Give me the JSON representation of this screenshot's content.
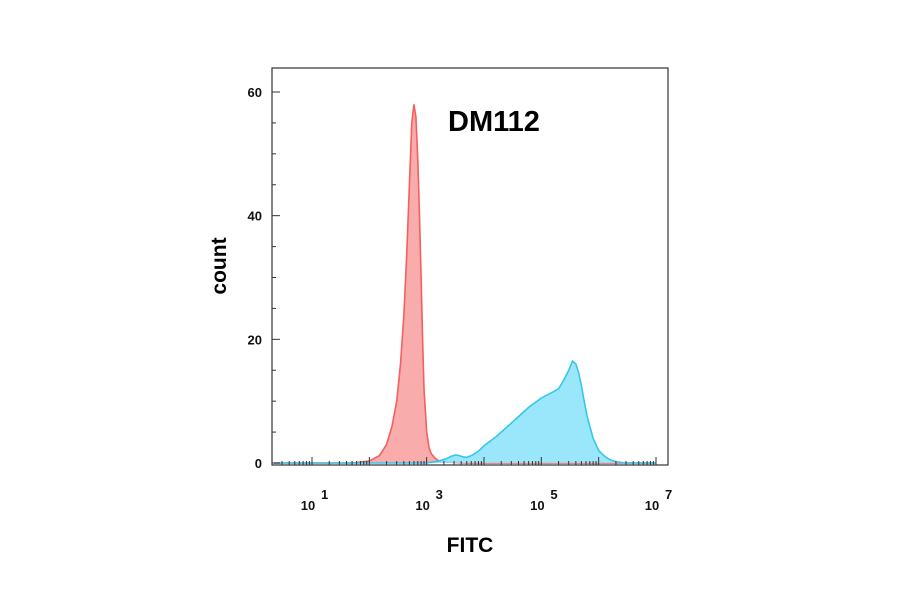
{
  "chart_data": {
    "type": "area",
    "title": "DM112",
    "xlabel": "FITC",
    "ylabel": "count",
    "x_scale": "log10",
    "xlim": [
      1,
      10000000
    ],
    "ylim": [
      0,
      62
    ],
    "x_ticks": [
      {
        "value": 10,
        "base": "10",
        "exp": "1"
      },
      {
        "value": 1000,
        "base": "10",
        "exp": "3"
      },
      {
        "value": 100000,
        "base": "10",
        "exp": "5"
      },
      {
        "value": 10000000,
        "base": "10",
        "exp": "7"
      }
    ],
    "y_ticks": [
      {
        "value": 0,
        "label": "0"
      },
      {
        "value": 20,
        "label": "20"
      },
      {
        "value": 40,
        "label": "40"
      },
      {
        "value": 60,
        "label": "60"
      }
    ],
    "grid": false,
    "legend": "none",
    "series": [
      {
        "color": "#f45f5f",
        "fill": "#f8a3a3",
        "x": [
          1,
          50,
          100,
          150,
          200,
          250,
          300,
          350,
          400,
          450,
          500,
          550,
          600,
          650,
          700,
          750,
          800,
          850,
          900,
          1000,
          1100,
          1200,
          1400,
          1600,
          2000,
          3000,
          5000,
          10000000
        ],
        "y": [
          0,
          0,
          0.3,
          1.2,
          3,
          6,
          10,
          16,
          24,
          34,
          45,
          55,
          58,
          56,
          49,
          40,
          30,
          20,
          12,
          5,
          2.5,
          1.5,
          0.8,
          0.4,
          0.2,
          0.1,
          0,
          0
        ]
      },
      {
        "color": "#38c6ec",
        "fill": "#8fe3fa",
        "x": [
          1,
          1000,
          1600,
          2200,
          2700,
          3200,
          3700,
          4300,
          5000,
          6300,
          8000,
          10000,
          16000,
          25000,
          40000,
          60000,
          100000,
          160000,
          200000,
          250000,
          300000,
          350000,
          400000,
          450000,
          500000,
          560000,
          630000,
          800000,
          1000000,
          1300000,
          1600000,
          2000000,
          2500000,
          3200000,
          10000000
        ],
        "y": [
          0,
          0,
          0.3,
          0.7,
          1.1,
          1.3,
          1.2,
          1.0,
          0.9,
          1.3,
          1.9,
          2.8,
          4.2,
          5.8,
          7.5,
          9.0,
          10.5,
          11.5,
          12.0,
          13.5,
          15.0,
          16.5,
          16.0,
          14.5,
          12.5,
          10.0,
          7.5,
          4.0,
          2.0,
          1.0,
          0.5,
          0.2,
          0.1,
          0,
          0
        ]
      }
    ]
  }
}
